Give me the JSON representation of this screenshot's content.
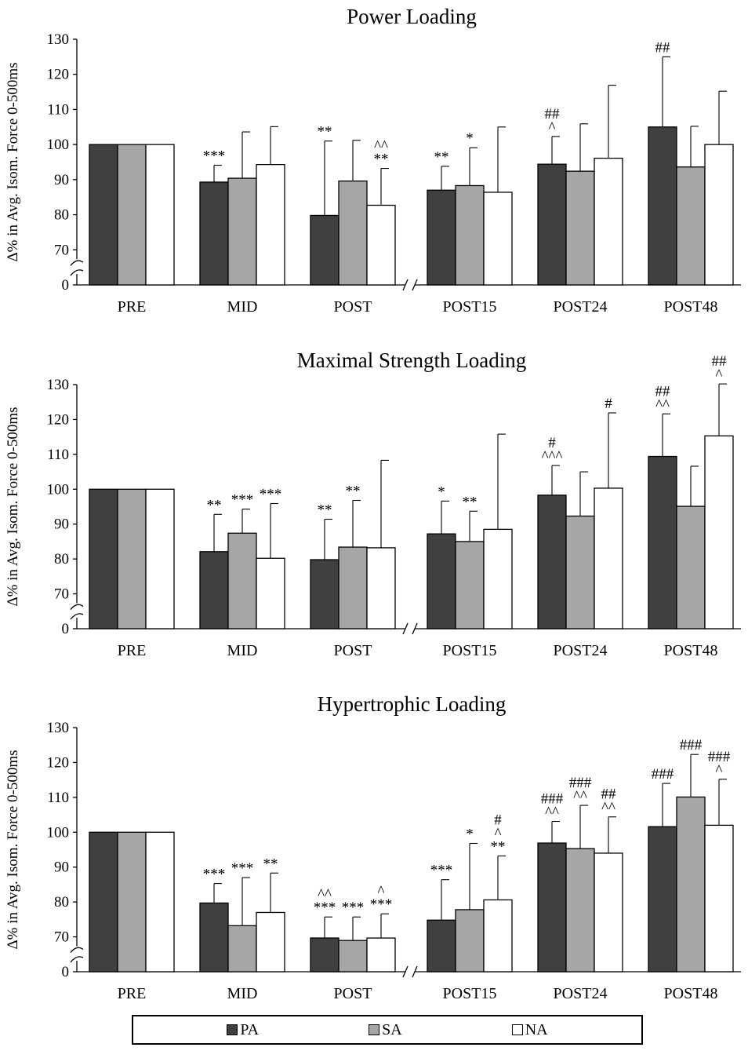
{
  "colors": {
    "PA": "#404040",
    "SA": "#a6a6a6",
    "NA": "#ffffff"
  },
  "legend": {
    "items": [
      {
        "key": "PA",
        "label": "PA"
      },
      {
        "key": "SA",
        "label": "SA"
      },
      {
        "key": "NA",
        "label": "NA"
      }
    ]
  },
  "chart_data": [
    {
      "type": "bar",
      "title": "Power Loading",
      "ylabel": "Δ% in Avg. Isom. Force 0-500ms",
      "ylim": [
        0,
        130
      ],
      "yticks": [
        0,
        70,
        80,
        90,
        100,
        110,
        120,
        130
      ],
      "axis_break": true,
      "categories": [
        "PRE",
        "MID",
        "POST",
        "POST15",
        "POST24",
        "POST48"
      ],
      "series": [
        {
          "name": "PA",
          "values": [
            100,
            89.3,
            79.8,
            87.0,
            94.4,
            105.0
          ],
          "errors": [
            0,
            4.8,
            21.2,
            6.8,
            7.9,
            20.0
          ],
          "annotations": [
            "",
            "***",
            "**",
            "**",
            "##\n^",
            "##"
          ]
        },
        {
          "name": "SA",
          "values": [
            100,
            90.4,
            89.6,
            88.3,
            92.4,
            93.6
          ],
          "errors": [
            0,
            13.2,
            11.6,
            10.8,
            13.5,
            11.6
          ],
          "annotations": [
            "",
            "",
            "",
            "*",
            "",
            ""
          ]
        },
        {
          "name": "NA",
          "values": [
            100,
            94.3,
            82.7,
            86.4,
            96.1,
            100.0
          ],
          "errors": [
            0,
            10.8,
            10.5,
            18.6,
            20.8,
            15.2
          ],
          "annotations": [
            "",
            "",
            "^^\n**",
            "",
            "",
            ""
          ]
        }
      ]
    },
    {
      "type": "bar",
      "title": "Maximal Strength Loading",
      "ylabel": "Δ% in Avg. Isom. Force 0-500ms",
      "ylim": [
        0,
        130
      ],
      "yticks": [
        0,
        70,
        80,
        90,
        100,
        110,
        120,
        130
      ],
      "axis_break": true,
      "categories": [
        "PRE",
        "MID",
        "POST",
        "POST15",
        "POST24",
        "POST48"
      ],
      "series": [
        {
          "name": "PA",
          "values": [
            100,
            82.1,
            79.8,
            87.2,
            98.3,
            109.4
          ],
          "errors": [
            0,
            10.7,
            11.6,
            9.4,
            8.5,
            12.2
          ],
          "annotations": [
            "",
            "**",
            "**",
            "*",
            "#\n^^^",
            "##\n^^"
          ]
        },
        {
          "name": "SA",
          "values": [
            100,
            87.4,
            83.4,
            85.0,
            92.3,
            95.1
          ],
          "errors": [
            0,
            6.9,
            13.4,
            8.7,
            12.7,
            11.5
          ],
          "annotations": [
            "",
            "***",
            "**",
            "**",
            "",
            ""
          ]
        },
        {
          "name": "NA",
          "values": [
            100,
            80.2,
            83.2,
            88.5,
            100.3,
            115.3
          ],
          "errors": [
            0,
            15.7,
            25.1,
            27.3,
            21.6,
            14.9
          ],
          "annotations": [
            "",
            "***",
            "",
            "",
            "#",
            "##\n^"
          ]
        }
      ]
    },
    {
      "type": "bar",
      "title": "Hypertrophic Loading",
      "ylabel": "Δ% in Avg. Isom. Force 0-500ms",
      "ylim": [
        0,
        130
      ],
      "yticks": [
        0,
        70,
        80,
        90,
        100,
        110,
        120,
        130
      ],
      "axis_break": true,
      "categories": [
        "PRE",
        "MID",
        "POST",
        "POST15",
        "POST24",
        "POST48"
      ],
      "series": [
        {
          "name": "PA",
          "values": [
            100,
            79.7,
            67.7,
            74.8,
            96.9,
            101.6
          ],
          "errors": [
            0,
            5.6,
            8.0,
            11.6,
            6.2,
            12.4
          ],
          "annotations": [
            "",
            "***",
            "^^\n***",
            "***",
            "###\n^^",
            "###"
          ]
        },
        {
          "name": "SA",
          "values": [
            100,
            73.2,
            62.7,
            77.8,
            95.3,
            110.1
          ],
          "errors": [
            0,
            13.8,
            13.0,
            19.0,
            12.4,
            12.2
          ],
          "annotations": [
            "",
            "***",
            "***",
            "*",
            "###\n^^",
            "###"
          ]
        },
        {
          "name": "NA",
          "values": [
            100,
            77.0,
            67.6,
            80.6,
            94.0,
            102.0
          ],
          "errors": [
            0,
            11.3,
            9.0,
            12.6,
            10.4,
            13.2
          ],
          "annotations": [
            "",
            "**",
            "^\n***",
            "#\n^\n**",
            "##\n^^",
            "###\n^"
          ]
        }
      ]
    }
  ]
}
